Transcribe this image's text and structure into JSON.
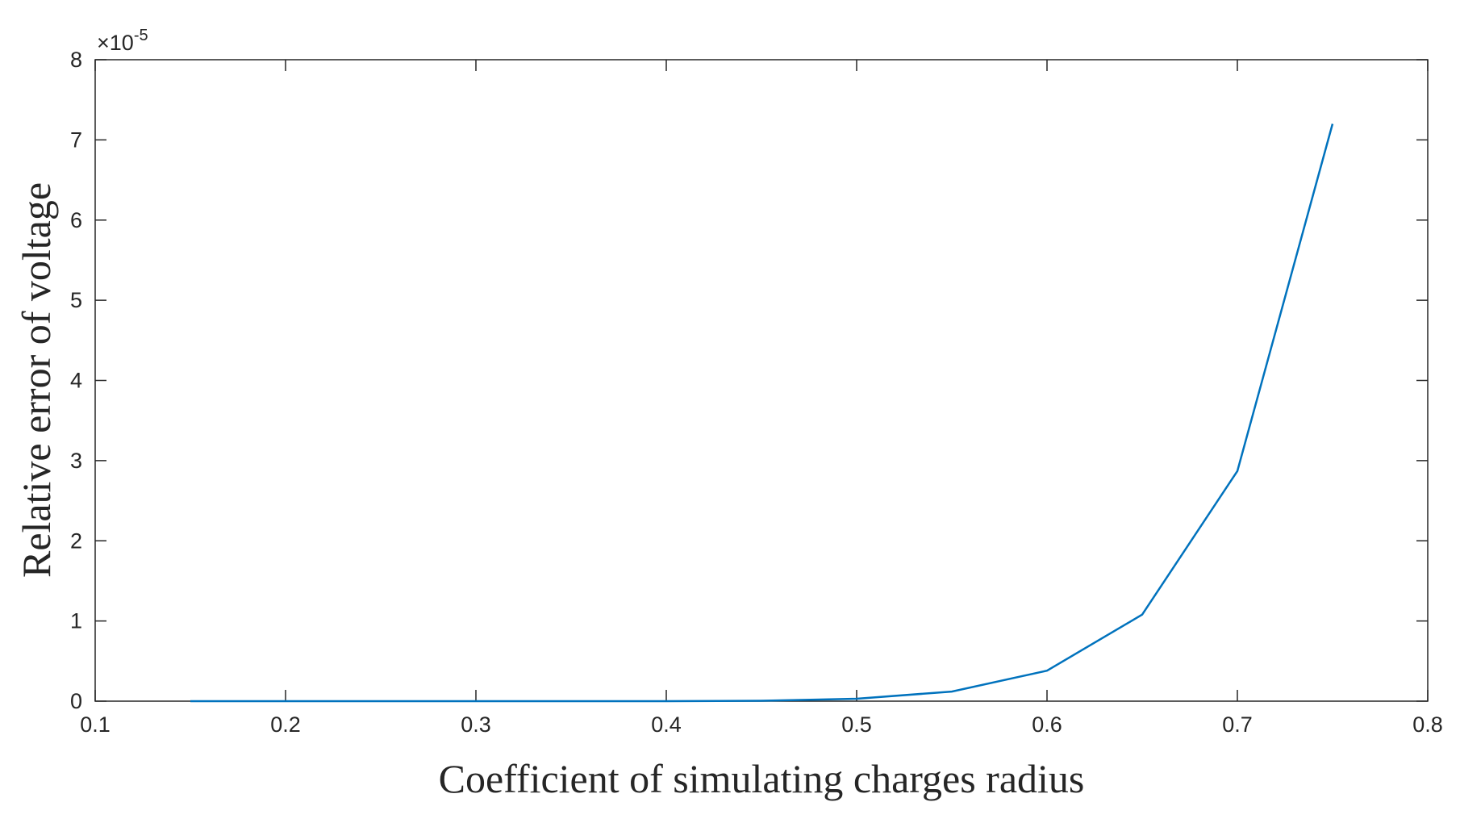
{
  "chart_data": {
    "type": "line",
    "title": "",
    "xlabel": "Coefficient of simulating charges radius",
    "ylabel": "Relative error of voltage",
    "y_multiplier": {
      "base": "×10",
      "exponent": "-5"
    },
    "xlim": [
      0.1,
      0.8
    ],
    "ylim": [
      0,
      8
    ],
    "x_ticks": [
      "0.1",
      "0.2",
      "0.3",
      "0.4",
      "0.5",
      "0.6",
      "0.7",
      "0.8"
    ],
    "y_ticks": [
      "0",
      "1",
      "2",
      "3",
      "4",
      "5",
      "6",
      "7",
      "8"
    ],
    "grid": false,
    "legend": "none",
    "series": [
      {
        "color": "#0072BD",
        "x": [
          0.15,
          0.2,
          0.25,
          0.3,
          0.35,
          0.4,
          0.45,
          0.5,
          0.55,
          0.6,
          0.65,
          0.7,
          0.75
        ],
        "y": [
          0,
          0,
          0,
          0,
          0,
          0,
          0.005,
          0.03,
          0.12,
          0.38,
          1.08,
          2.87,
          7.2
        ]
      }
    ]
  }
}
